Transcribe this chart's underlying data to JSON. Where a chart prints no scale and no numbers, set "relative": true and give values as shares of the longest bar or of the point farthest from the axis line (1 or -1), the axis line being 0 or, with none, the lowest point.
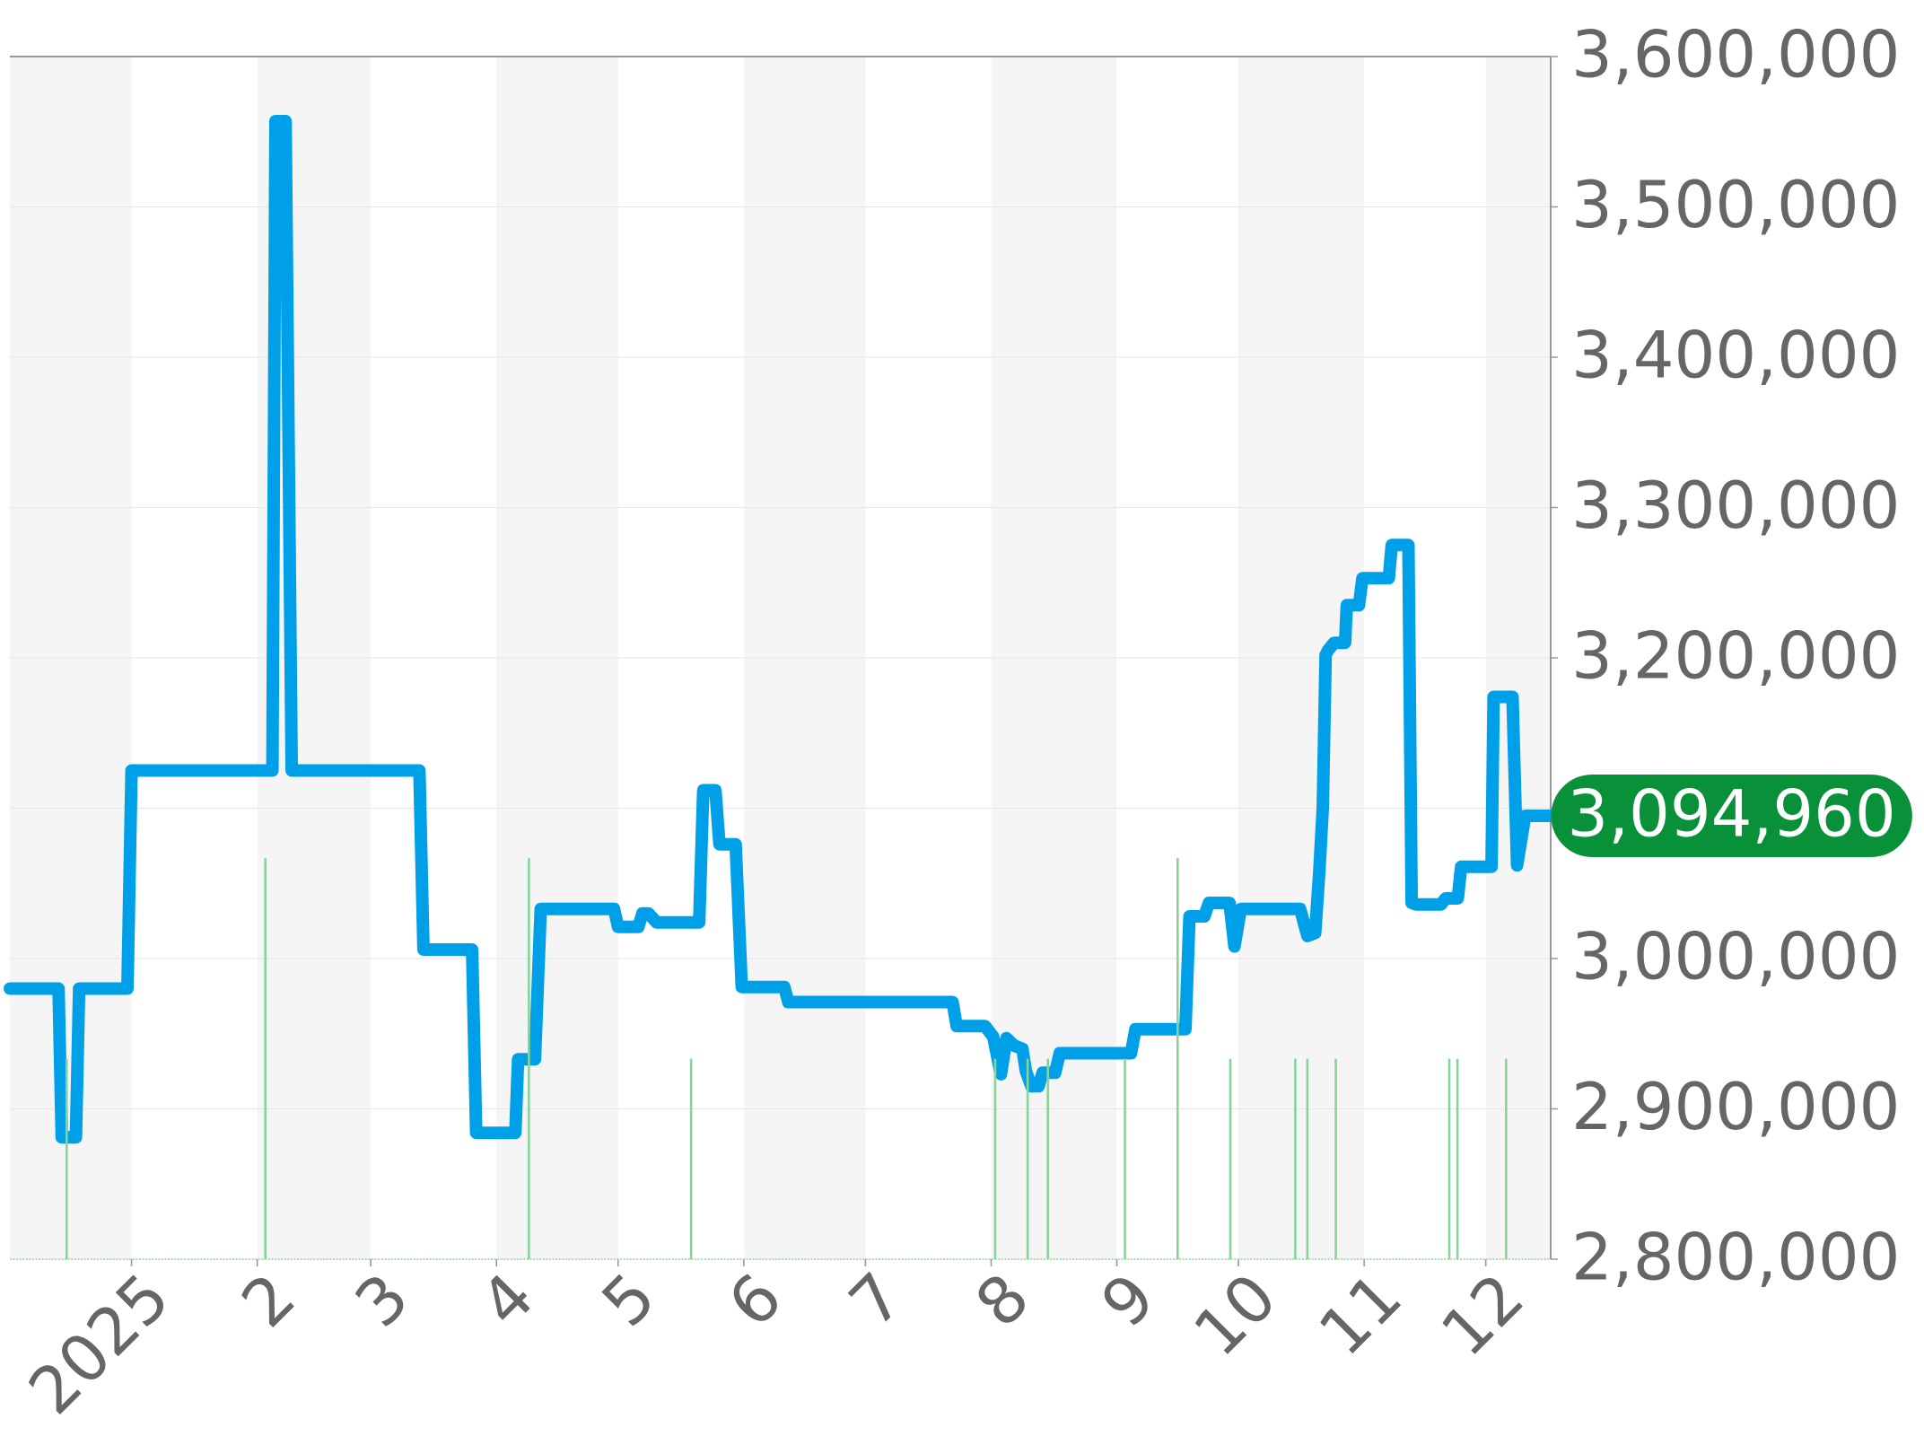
{
  "chart_data": [
    {
      "type": "line",
      "xlim": [
        "2024-12-02",
        "2025-12-17"
      ],
      "ylim": [
        2800000,
        3600000
      ],
      "xticks": [
        {
          "value": "2025-01-01",
          "label": "2025"
        },
        {
          "value": "2025-02-01",
          "label": "2"
        },
        {
          "value": "2025-03-01",
          "label": "3"
        },
        {
          "value": "2025-04-01",
          "label": "4"
        },
        {
          "value": "2025-05-01",
          "label": "5"
        },
        {
          "value": "2025-06-01",
          "label": "6"
        },
        {
          "value": "2025-07-01",
          "label": "7"
        },
        {
          "value": "2025-08-01",
          "label": "8"
        },
        {
          "value": "2025-09-01",
          "label": "9"
        },
        {
          "value": "2025-10-01",
          "label": "10"
        },
        {
          "value": "2025-11-01",
          "label": "11"
        },
        {
          "value": "2025-12-01",
          "label": "12"
        }
      ],
      "yticks": [
        {
          "value": 2800000,
          "label": "2,800,000"
        },
        {
          "value": 2900000,
          "label": "2,900,000"
        },
        {
          "value": 3000000,
          "label": "3,000,000"
        },
        {
          "value": 3100000,
          "label": null
        },
        {
          "value": 3200000,
          "label": "3,200,000"
        },
        {
          "value": 3300000,
          "label": "3,300,000"
        },
        {
          "value": 3400000,
          "label": "3,400,000"
        },
        {
          "value": 3500000,
          "label": "3,500,000"
        },
        {
          "value": 3600000,
          "label": "3,600,000"
        }
      ],
      "grid": "y",
      "line_style": "solid",
      "bands": [
        {
          "axis": "x",
          "from": "2024-12-02",
          "to": "2025-01-01",
          "color": "#f5f5f5"
        },
        {
          "axis": "x",
          "from": "2025-02-01",
          "to": "2025-03-01",
          "color": "#f5f5f5"
        },
        {
          "axis": "x",
          "from": "2025-04-01",
          "to": "2025-05-01",
          "color": "#f5f5f5"
        },
        {
          "axis": "x",
          "from": "2025-06-01",
          "to": "2025-07-01",
          "color": "#f5f5f5"
        },
        {
          "axis": "x",
          "from": "2025-08-01",
          "to": "2025-09-01",
          "color": "#f5f5f5"
        },
        {
          "axis": "x",
          "from": "2025-10-01",
          "to": "2025-11-01",
          "color": "#f5f5f5"
        },
        {
          "axis": "x",
          "from": "2025-12-01",
          "to": "2025-12-17",
          "color": "#f5f5f5"
        }
      ],
      "annotations": [
        {
          "text": "3,094,960",
          "x": "2025-12-17",
          "y": 3094960
        }
      ],
      "color": "#00a0e9",
      "x": [
        "2024-12-02",
        "2024-12-14",
        "2024-12-14T19:00",
        "2024-12-18T07:00",
        "2024-12-19T02:00",
        "2024-12-31",
        "2025-01-01",
        "2025-02-04T18:00",
        "2025-02-05T12:00",
        "2025-02-08",
        "2025-02-09T12:00",
        "2025-03-13",
        "2025-03-14",
        "2025-03-26",
        "2025-03-27",
        "2025-04-05T16:00",
        "2025-04-06T08:00",
        "2025-04-10T12:00",
        "2025-04-11T22:00",
        "2025-04-30",
        "2025-05-01",
        "2025-05-06",
        "2025-05-07",
        "2025-05-08T12:00",
        "2025-05-10T12:00",
        "2025-05-21",
        "2025-05-22",
        "2025-05-25",
        "2025-05-26",
        "2025-05-30",
        "2025-05-31T12:00",
        "2025-06-11",
        "2025-06-12",
        "2025-07-22T12:00",
        "2025-07-23T12:00",
        "2025-07-30T12:00",
        "2025-08-01T12:00",
        "2025-08-03T10:00",
        "2025-08-04T19:00",
        "2025-08-06T17:00",
        "2025-08-08T17:00",
        "2025-08-09T14:00",
        "2025-08-10T22:00",
        "2025-08-12T17:00",
        "2025-08-13T17:00",
        "2025-08-16T19:00",
        "2025-08-17T22:00",
        "2025-09-04T12:00",
        "2025-09-05T14:00",
        "2025-09-17T22:00",
        "2025-09-18T22:00",
        "2025-09-22T14:00",
        "2025-09-23T17:00",
        "2025-09-28T19:00",
        "2025-09-30",
        "2025-10-01T14:00",
        "2025-10-16T05:00",
        "2025-10-18",
        "2025-10-19T22:00",
        "2025-10-20T22:00",
        "2025-10-21T19:00",
        "2025-10-22T12:00",
        "2025-10-23T02:00",
        "2025-10-24T14:00",
        "2025-10-27T07:00",
        "2025-10-27T17:00",
        "2025-10-30T17:00",
        "2025-10-31T14:00",
        "2025-11-07T02:00",
        "2025-11-07T19:00",
        "2025-11-11T22:00",
        "2025-11-12T17:00",
        "2025-11-13T17:00",
        "2025-11-20",
        "2025-11-21T02:00",
        "2025-11-24T02:00",
        "2025-11-24T22:00",
        "2025-12-02T10:00",
        "2025-12-02T22:00",
        "2025-12-07T14:00",
        "2025-12-08T17:00",
        "2025-12-10T17:00",
        "2025-12-17"
      ],
      "values": [
        2980000,
        2980000,
        2881000,
        2881000,
        2980000,
        2980000,
        3125000,
        3125000,
        3557000,
        3557000,
        3125000,
        3125000,
        3006000,
        3006000,
        2884000,
        2884000,
        2933000,
        2933000,
        3033000,
        3033000,
        3021000,
        3021000,
        3030000,
        3030000,
        3024000,
        3024000,
        3112000,
        3112000,
        3076000,
        3076000,
        2981000,
        2981000,
        2971000,
        2971000,
        2955000,
        2955000,
        2948000,
        2923000,
        2947000,
        2942000,
        2940000,
        2925000,
        2915000,
        2915000,
        2924000,
        2924000,
        2937000,
        2937000,
        2953000,
        2953000,
        3028000,
        3028000,
        3037000,
        3037000,
        3008000,
        3033000,
        3033000,
        3015000,
        3017000,
        3057000,
        3100000,
        3202000,
        3205000,
        3210000,
        3210000,
        3235000,
        3235000,
        3253000,
        3253000,
        3275000,
        3275000,
        3037000,
        3036000,
        3036000,
        3040000,
        3040000,
        3061000,
        3061000,
        3174000,
        3174000,
        3062000,
        3094960,
        3094960
      ]
    },
    {
      "type": "bar",
      "relative": true,
      "tick_labels": false,
      "xlim": [
        "2024-12-02",
        "2025-12-17"
      ],
      "color": "#88d498",
      "x": [
        "2024-12-16",
        "2025-02-03",
        "2025-04-09",
        "2025-05-19",
        "2025-08-02",
        "2025-08-10",
        "2025-08-15",
        "2025-09-03",
        "2025-09-16",
        "2025-09-29",
        "2025-10-15",
        "2025-10-18",
        "2025-10-25",
        "2025-11-22",
        "2025-11-24",
        "2025-12-06"
      ],
      "values": [
        0.5,
        1,
        1,
        0.5,
        0.5,
        0.5,
        0.5,
        0.5,
        1,
        0.5,
        0.5,
        0.5,
        0.5,
        0.5,
        0.5,
        0.5
      ]
    }
  ]
}
